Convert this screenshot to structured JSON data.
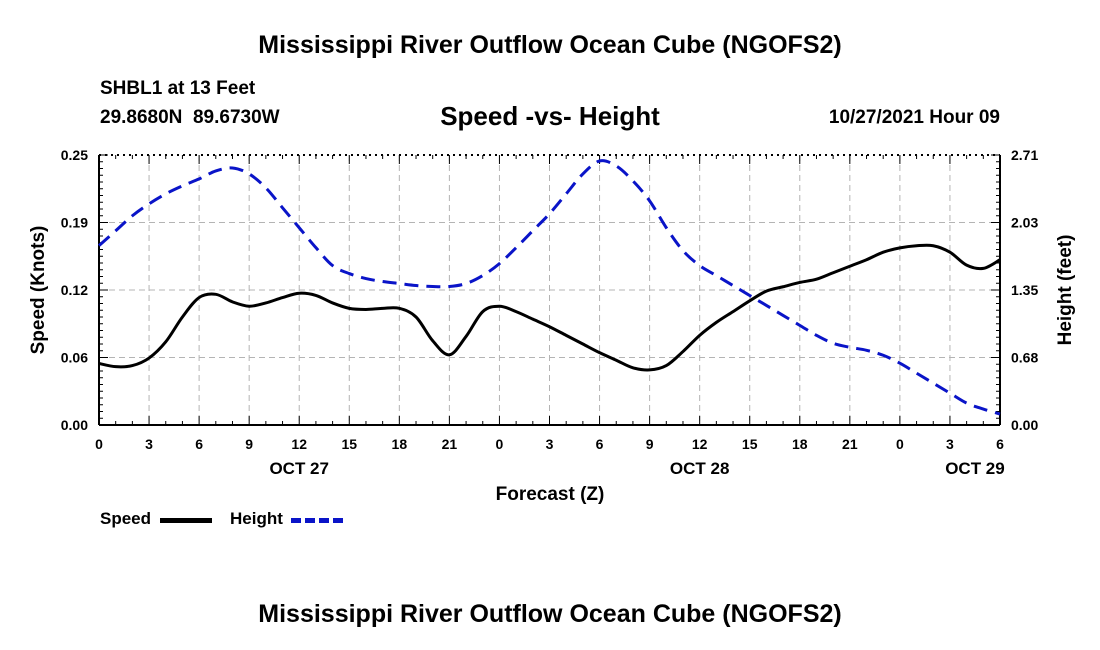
{
  "page_title": "Mississippi River Outflow Ocean Cube (NGOFS2)",
  "footer_title": "Mississippi River Outflow Ocean Cube (NGOFS2)",
  "station": {
    "name": "SHBL1 at 13 Feet",
    "coords": "29.8680N  89.6730W",
    "datetime": "10/27/2021 Hour 09"
  },
  "chart_data": {
    "type": "line",
    "title": "Speed -vs- Height",
    "xlabel": "Forecast (Z)",
    "ylabel": "Speed (Knots)",
    "y2label": "Height (feet)",
    "ylim": [
      0,
      0.25
    ],
    "y2lim": [
      0,
      2.71
    ],
    "y_ticks": [
      "0.00",
      "0.06",
      "0.12",
      "0.19",
      "0.25"
    ],
    "y2_ticks": [
      "0.00",
      "0.68",
      "1.35",
      "2.03",
      "2.71"
    ],
    "x_hours": [
      0,
      3,
      6,
      9,
      12,
      15,
      18,
      21,
      24,
      27,
      30,
      33,
      36,
      39,
      42,
      45,
      48,
      51,
      54
    ],
    "x_tick_labels": [
      "0",
      "3",
      "6",
      "9",
      "12",
      "15",
      "18",
      "21",
      "0",
      "3",
      "6",
      "9",
      "12",
      "15",
      "18",
      "21",
      "0",
      "3",
      "6"
    ],
    "date_labels": [
      {
        "hour": 12,
        "label": "OCT 27"
      },
      {
        "hour": 36,
        "label": "OCT 28"
      },
      {
        "hour": 52.5,
        "label": "OCT 29"
      }
    ],
    "legend": [
      {
        "name": "Speed",
        "color": "#000000",
        "style": "solid"
      },
      {
        "name": "Height",
        "color": "#0a14c8",
        "style": "dashed"
      }
    ],
    "series": [
      {
        "name": "Speed",
        "axis": "left",
        "color": "#000000",
        "x": [
          0,
          1,
          2,
          3,
          4,
          5,
          6,
          7,
          8,
          9,
          10,
          11,
          12,
          13,
          14,
          15,
          16,
          17,
          18,
          19,
          20,
          21,
          22,
          23,
          24,
          25,
          26,
          27,
          28,
          29,
          30,
          31,
          32,
          33,
          34,
          35,
          36,
          37,
          38,
          39,
          40,
          41,
          42,
          43,
          44,
          45,
          46,
          47,
          48,
          49,
          50,
          51,
          52,
          53,
          54
        ],
        "values": [
          0.057,
          0.054,
          0.055,
          0.062,
          0.077,
          0.1,
          0.118,
          0.121,
          0.114,
          0.11,
          0.113,
          0.118,
          0.122,
          0.12,
          0.113,
          0.108,
          0.107,
          0.108,
          0.108,
          0.1,
          0.078,
          0.065,
          0.082,
          0.105,
          0.11,
          0.105,
          0.098,
          0.091,
          0.083,
          0.075,
          0.067,
          0.06,
          0.053,
          0.051,
          0.055,
          0.068,
          0.083,
          0.095,
          0.105,
          0.115,
          0.124,
          0.128,
          0.132,
          0.135,
          0.141,
          0.147,
          0.153,
          0.16,
          0.164,
          0.166,
          0.166,
          0.16,
          0.148,
          0.145,
          0.153
        ]
      },
      {
        "name": "Height",
        "axis": "right",
        "color": "#0a14c8",
        "x": [
          0,
          1,
          2,
          3,
          4,
          5,
          6,
          7,
          8,
          9,
          10,
          11,
          12,
          13,
          14,
          15,
          16,
          17,
          18,
          19,
          20,
          21,
          22,
          23,
          24,
          25,
          26,
          27,
          28,
          29,
          30,
          31,
          32,
          33,
          34,
          35,
          36,
          37,
          38,
          39,
          40,
          41,
          42,
          43,
          44,
          45,
          46,
          47,
          48,
          49,
          50,
          51,
          52,
          53,
          54
        ],
        "values": [
          1.8,
          1.95,
          2.1,
          2.22,
          2.32,
          2.4,
          2.47,
          2.55,
          2.58,
          2.52,
          2.38,
          2.18,
          1.98,
          1.78,
          1.6,
          1.52,
          1.47,
          1.44,
          1.42,
          1.4,
          1.39,
          1.39,
          1.42,
          1.5,
          1.62,
          1.78,
          1.95,
          2.12,
          2.32,
          2.52,
          2.65,
          2.6,
          2.45,
          2.25,
          1.98,
          1.75,
          1.6,
          1.5,
          1.4,
          1.3,
          1.2,
          1.1,
          1.0,
          0.9,
          0.82,
          0.78,
          0.75,
          0.7,
          0.62,
          0.52,
          0.42,
          0.32,
          0.22,
          0.16,
          0.11
        ]
      }
    ]
  }
}
